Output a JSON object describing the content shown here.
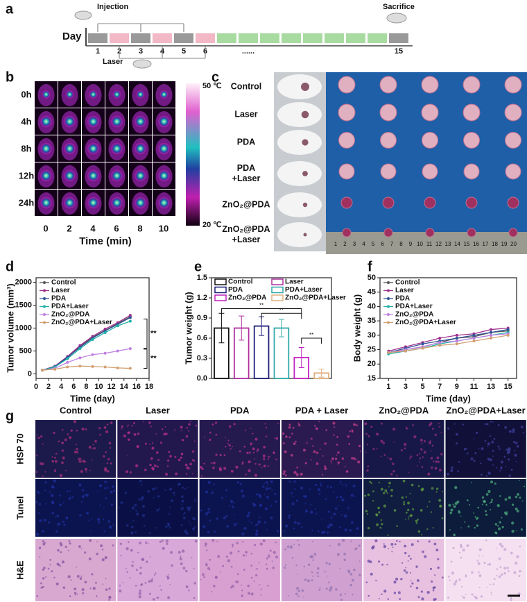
{
  "panel_labels": [
    "a",
    "b",
    "c",
    "d",
    "e",
    "f",
    "g"
  ],
  "panel_a": {
    "injection": "Injection",
    "sacrifice": "Sacrifice",
    "axis": "Day",
    "days": [
      "1",
      "2",
      "3",
      "4",
      "5",
      "6",
      "......",
      "15"
    ],
    "laser": "Laser"
  },
  "panel_b": {
    "rows": [
      "0h",
      "4h",
      "8h",
      "12h",
      "24h"
    ],
    "columns": [
      "0",
      "2",
      "4",
      "6",
      "8",
      "10"
    ],
    "x_label": "Time (min)",
    "scale_max": "50 ℃",
    "scale_min": "20 ℃"
  },
  "panel_c": {
    "rows": [
      [
        "Control"
      ],
      [
        "Laser"
      ],
      [
        "PDA"
      ],
      [
        "PDA",
        "+Laser"
      ],
      [
        "ZnO₂@PDA"
      ],
      [
        "ZnO₂@PDA",
        "+Laser"
      ]
    ],
    "ruler": [
      "1",
      "2",
      "3",
      "4",
      "5",
      "6",
      "7",
      "8",
      "9",
      "10",
      "11",
      "12",
      "13",
      "14",
      "15",
      "16",
      "17",
      "18",
      "19",
      "20"
    ]
  },
  "chart_data": [
    {
      "type": "line",
      "y_label": "Tumor volume (mm³)",
      "x_label": "Time (day)",
      "x": [
        1,
        3,
        5,
        7,
        9,
        11,
        13,
        15
      ],
      "xlim": [
        0,
        18
      ],
      "xticks": [
        0,
        2,
        4,
        6,
        8,
        10,
        12,
        14,
        16,
        18
      ],
      "ylim": [
        -100,
        2100
      ],
      "yticks": [
        0,
        500,
        1000,
        1500,
        2000
      ],
      "series": [
        {
          "name": "Control",
          "color": "#555555",
          "values": [
            80,
            150,
            350,
            600,
            800,
            950,
            1100,
            1250
          ]
        },
        {
          "name": "Laser",
          "color": "#a0308f",
          "values": [
            80,
            170,
            380,
            620,
            820,
            980,
            1120,
            1280
          ]
        },
        {
          "name": "PDA",
          "color": "#2f5597",
          "values": [
            80,
            160,
            360,
            580,
            780,
            940,
            1080,
            1230
          ]
        },
        {
          "name": "PDA+Laser",
          "color": "#20b2aa",
          "values": [
            80,
            150,
            330,
            550,
            750,
            900,
            1050,
            1150
          ]
        },
        {
          "name": "ZnO₂@PDA",
          "color": "#c080e0",
          "values": [
            80,
            120,
            250,
            350,
            420,
            450,
            500,
            550
          ]
        },
        {
          "name": "ZnO₂@PDA+Laser",
          "color": "#d2a070",
          "values": [
            80,
            100,
            150,
            170,
            160,
            150,
            130,
            120
          ]
        }
      ],
      "annotations": [
        "**",
        "**"
      ]
    },
    {
      "type": "bar",
      "y_label": "Tumor weight (g)",
      "categories": [
        "Control",
        "Laser",
        "PDA",
        "PDA+Laser",
        "ZnO₂@PDA",
        "ZnO₂@PDA+Laser"
      ],
      "colors": [
        "#111111",
        "#b0309f",
        "#1f1f7a",
        "#30a8a8",
        "#c020c0",
        "#e0b080"
      ],
      "values": [
        0.75,
        0.75,
        0.78,
        0.75,
        0.31,
        0.08
      ],
      "errors": [
        0.22,
        0.18,
        0.14,
        0.13,
        0.15,
        0.06
      ],
      "ylim": [
        0,
        1.5
      ],
      "yticks": [
        {
          "value": 0,
          "label": "0.0"
        },
        0.3,
        0.6,
        0.9,
        1.2,
        1.5
      ],
      "annotations": [
        "**",
        "**",
        "**"
      ]
    },
    {
      "type": "line",
      "y_label": "Body weight (g)",
      "x_label": "Time (day)",
      "x": [
        1,
        3,
        5,
        7,
        9,
        11,
        13,
        15
      ],
      "xlim": [
        0,
        16
      ],
      "xticks": [
        1,
        3,
        5,
        7,
        9,
        11,
        13,
        15
      ],
      "ylim": [
        15,
        50
      ],
      "yticks": [
        15,
        20,
        25,
        30,
        35,
        40,
        45,
        50
      ],
      "series": [
        {
          "name": "Control",
          "color": "#555555",
          "values": [
            24,
            25,
            26,
            27.5,
            29,
            29.5,
            31,
            31.5
          ]
        },
        {
          "name": "Laser",
          "color": "#a0308f",
          "values": [
            24.5,
            26,
            27.5,
            29,
            30,
            30.5,
            32,
            32.5
          ]
        },
        {
          "name": "PDA",
          "color": "#2f5597",
          "values": [
            24,
            25.5,
            27,
            28,
            29,
            30,
            31,
            32
          ]
        },
        {
          "name": "PDA+Laser",
          "color": "#20b2aa",
          "values": [
            23.5,
            24.5,
            25.5,
            27,
            28,
            29,
            30,
            31
          ]
        },
        {
          "name": "ZnO₂@PDA",
          "color": "#c080e0",
          "values": [
            24,
            25,
            26,
            27.5,
            28,
            29,
            30,
            30.5
          ]
        },
        {
          "name": "ZnO₂@PDA+Laser",
          "color": "#d2a070",
          "values": [
            24,
            24.5,
            25.5,
            26.5,
            27,
            28,
            29,
            30
          ]
        }
      ]
    }
  ],
  "panel_g": {
    "columns": [
      "Control",
      "Laser",
      "PDA",
      "PDA + Laser",
      "ZnO₂@PDA",
      "ZnO₂@PDA+Laser"
    ],
    "rows": [
      "HSP 70",
      "Tunel",
      "H&E"
    ]
  }
}
